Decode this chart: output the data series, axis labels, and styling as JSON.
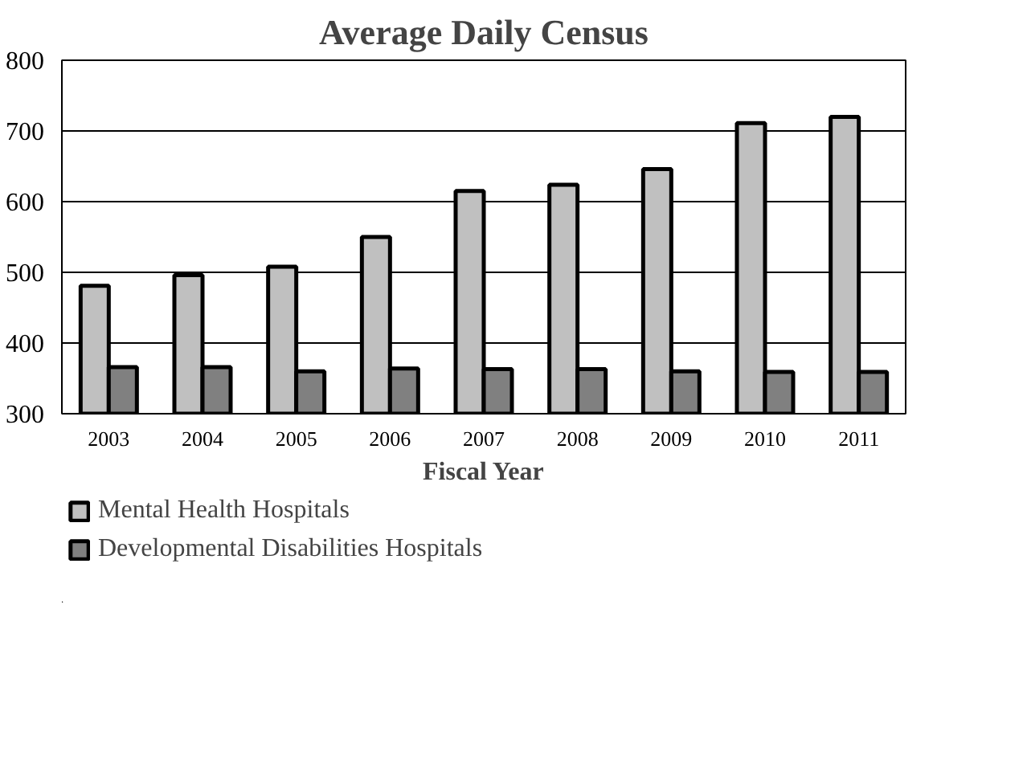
{
  "chart_data": {
    "type": "bar",
    "title": "Average Daily Census",
    "xlabel": "Fiscal Year",
    "categories": [
      "2003",
      "2004",
      "2005",
      "2006",
      "2007",
      "2008",
      "2009",
      "2010",
      "2011"
    ],
    "series": [
      {
        "name": "Mental Health Hospitals",
        "color": "#c0c0c0",
        "values": [
          481,
          496,
          508,
          550,
          615,
          624,
          646,
          711,
          720
        ]
      },
      {
        "name": "Developmental Disabilities Hospitals",
        "color": "#808080",
        "values": [
          366,
          366,
          360,
          364,
          363,
          363,
          360,
          359,
          359
        ]
      }
    ],
    "ylim": [
      300,
      800
    ],
    "yticks": [
      300,
      400,
      500,
      600,
      700,
      800
    ],
    "grid": "y",
    "legend": "bottom left"
  }
}
